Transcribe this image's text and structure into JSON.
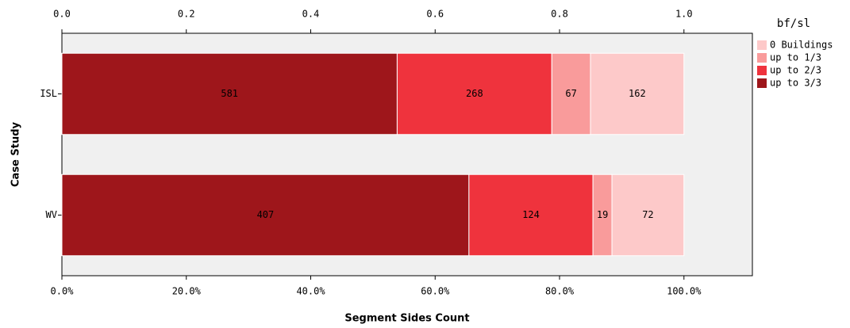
{
  "chart_data": {
    "type": "bar",
    "orientation": "horizontal",
    "stack": "percent",
    "x_label": "Segment Sides Count",
    "y_label": "Case Study",
    "legend_title": "bf/sl",
    "categories": [
      "ISL",
      "WV"
    ],
    "series": [
      {
        "name": "up to 3/3",
        "color": "#9e161b",
        "values": [
          581,
          407
        ]
      },
      {
        "name": "up to 2/3",
        "color": "#ef333d",
        "values": [
          268,
          124
        ]
      },
      {
        "name": "up to 1/3",
        "color": "#f99b9b",
        "values": [
          67,
          19
        ]
      },
      {
        "name": "0 Buildings",
        "color": "#fdc9c9",
        "values": [
          162,
          72
        ]
      }
    ],
    "xlim": [
      0,
      1.11
    ],
    "xticks": [
      {
        "value": 0,
        "label": "0.0%"
      },
      {
        "value": 0.2,
        "label": "20.0%"
      },
      {
        "value": 0.4,
        "label": "40.0%"
      },
      {
        "value": 0.6,
        "label": "60.0%"
      },
      {
        "value": 0.8,
        "label": "80.0%"
      },
      {
        "value": 1,
        "label": "100.0%"
      }
    ],
    "x2ticks": [
      {
        "value": 0,
        "label": "0.0"
      },
      {
        "value": 0.2,
        "label": "0.2"
      },
      {
        "value": 0.4,
        "label": "0.4"
      },
      {
        "value": 0.6,
        "label": "0.6"
      },
      {
        "value": 0.8,
        "label": "0.8"
      },
      {
        "value": 1,
        "label": "1.0"
      }
    ],
    "legend_position": "right",
    "legend_order": "reversed"
  }
}
